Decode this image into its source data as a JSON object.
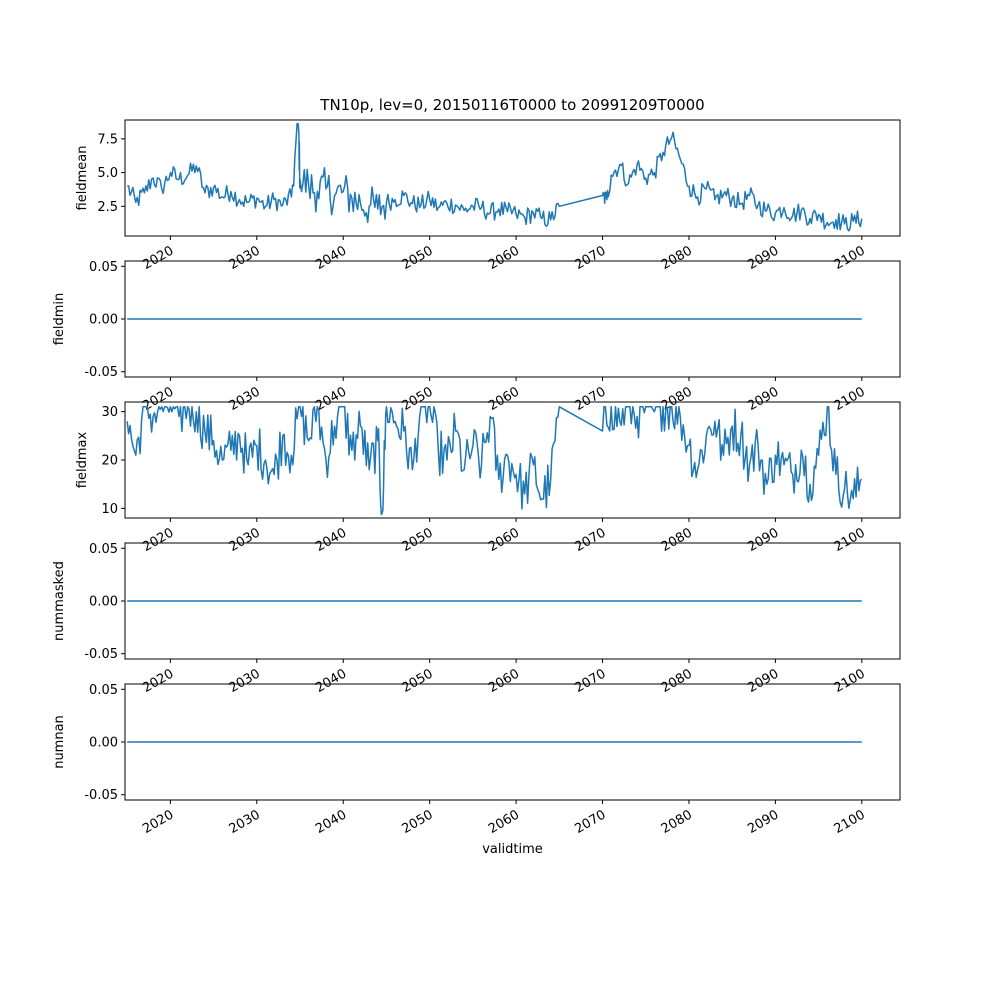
{
  "chart_data": {
    "title": "TN10p, lev=0, 20150116T0000 to 20991209T0000",
    "xlabel": "validtime",
    "x_ticks": [
      "2020",
      "2030",
      "2040",
      "2050",
      "2060",
      "2070",
      "2080",
      "2090",
      "2100"
    ],
    "x_range": [
      "2014-10",
      "2104-06"
    ],
    "line_color": "#1f77b4",
    "grid": false,
    "panels": [
      {
        "type": "line",
        "ylabel": "fieldmean",
        "ylim": [
          0.3,
          8.9
        ],
        "y_ticks": [
          "2.5",
          "5.0",
          "7.5"
        ],
        "x": [
          2015.0,
          2016.0,
          2017.0,
          2018.0,
          2019.0,
          2020.0,
          2021.0,
          2022.0,
          2023.0,
          2024.0,
          2025.0,
          2026.0,
          2027.0,
          2028.0,
          2029.0,
          2030.0,
          2031.0,
          2032.0,
          2033.0,
          2034.0,
          2034.8,
          2035.0,
          2036.0,
          2037.0,
          2038.0,
          2039.0,
          2040.0,
          2041.0,
          2042.0,
          2043.0,
          2044.0,
          2045.0,
          2046.0,
          2047.0,
          2048.0,
          2049.0,
          2050.0,
          2051.0,
          2052.0,
          2053.0,
          2054.0,
          2055.0,
          2056.0,
          2057.0,
          2058.0,
          2059.0,
          2060.0,
          2061.0,
          2062.0,
          2063.0,
          2064.0,
          2065.0,
          2070.0,
          2070.5,
          2071.0,
          2072.0,
          2073.0,
          2074.0,
          2075.0,
          2076.0,
          2077.0,
          2078.0,
          2079.0,
          2080.0,
          2081.0,
          2082.0,
          2083.0,
          2084.0,
          2085.0,
          2086.0,
          2087.0,
          2088.0,
          2089.0,
          2090.0,
          2091.0,
          2092.0,
          2093.0,
          2094.0,
          2095.0,
          2096.0,
          2097.0,
          2098.0,
          2099.0,
          2100.0
        ],
        "y": [
          4.0,
          2.8,
          3.5,
          4.6,
          3.8,
          5.0,
          4.5,
          4.8,
          5.5,
          3.5,
          3.9,
          3.2,
          3.6,
          3.0,
          2.8,
          3.1,
          2.5,
          3.0,
          2.6,
          3.2,
          8.6,
          4.5,
          4.0,
          3.6,
          3.8,
          3.3,
          3.6,
          3.1,
          2.7,
          2.5,
          2.3,
          2.8,
          3.0,
          3.3,
          2.7,
          2.6,
          3.0,
          2.4,
          2.7,
          2.6,
          2.2,
          2.5,
          2.4,
          2.0,
          2.3,
          2.1,
          1.9,
          1.7,
          2.0,
          1.6,
          1.5,
          2.5,
          3.3,
          3.0,
          4.8,
          5.6,
          4.2,
          5.6,
          4.6,
          5.0,
          6.5,
          7.6,
          6.0,
          4.0,
          3.2,
          3.8,
          3.0,
          3.4,
          3.1,
          2.7,
          3.3,
          2.6,
          2.2,
          2.0,
          2.4,
          1.8,
          2.2,
          1.6,
          1.9,
          1.3,
          1.5,
          1.2,
          1.4,
          1.6
        ]
      },
      {
        "type": "line",
        "ylabel": "fieldmin",
        "ylim": [
          -0.055,
          0.055
        ],
        "y_ticks": [
          "0.05",
          "0.00",
          "-0.05"
        ],
        "x": [
          2015.0,
          2100.0
        ],
        "y": [
          0.0,
          0.0
        ]
      },
      {
        "type": "line",
        "ylabel": "fieldmax",
        "ylim": [
          8.0,
          32.0
        ],
        "y_ticks": [
          "10",
          "20",
          "30"
        ],
        "x": [
          2015.0,
          2016.0,
          2017.0,
          2018.0,
          2019.0,
          2020.0,
          2021.0,
          2022.0,
          2023.0,
          2024.0,
          2025.0,
          2026.0,
          2027.0,
          2028.0,
          2029.0,
          2030.0,
          2031.0,
          2032.0,
          2033.0,
          2034.0,
          2035.0,
          2036.0,
          2037.0,
          2038.0,
          2039.0,
          2040.0,
          2041.0,
          2042.0,
          2043.0,
          2044.0,
          2044.5,
          2045.0,
          2046.0,
          2047.0,
          2048.0,
          2049.0,
          2050.0,
          2051.0,
          2052.0,
          2053.0,
          2054.0,
          2055.0,
          2056.0,
          2057.0,
          2058.0,
          2059.0,
          2060.0,
          2061.0,
          2062.0,
          2063.0,
          2064.0,
          2065.0,
          2070.0,
          2071.0,
          2072.0,
          2073.0,
          2074.0,
          2075.0,
          2076.0,
          2077.0,
          2078.0,
          2079.0,
          2080.0,
          2081.0,
          2082.0,
          2083.0,
          2084.0,
          2085.0,
          2086.0,
          2087.0,
          2088.0,
          2089.0,
          2090.0,
          2091.0,
          2092.0,
          2093.0,
          2094.0,
          2095.0,
          2096.0,
          2097.0,
          2098.0,
          2099.0,
          2100.0
        ],
        "y": [
          28.0,
          21.0,
          31.0,
          29.0,
          31.0,
          31.0,
          29.0,
          31.0,
          30.0,
          26.0,
          24.0,
          20.0,
          22.0,
          25.0,
          19.0,
          23.0,
          20.0,
          17.0,
          25.0,
          21.0,
          31.0,
          24.0,
          31.0,
          20.0,
          27.0,
          31.0,
          22.0,
          27.0,
          18.0,
          24.0,
          9.0,
          31.0,
          28.0,
          26.0,
          18.0,
          31.0,
          31.0,
          22.0,
          20.0,
          26.0,
          18.0,
          23.0,
          19.0,
          29.0,
          16.0,
          21.0,
          17.0,
          13.0,
          19.0,
          12.0,
          16.0,
          31.0,
          26.0,
          31.0,
          28.0,
          31.0,
          29.0,
          31.0,
          30.0,
          31.0,
          31.0,
          29.0,
          23.0,
          18.0,
          25.0,
          28.0,
          21.0,
          27.0,
          25.0,
          19.0,
          23.0,
          15.0,
          21.0,
          19.0,
          17.0,
          22.0,
          15.0,
          21.0,
          31.0,
          17.0,
          14.0,
          12.0,
          16.0
        ]
      },
      {
        "type": "line",
        "ylabel": "nummasked",
        "ylim": [
          -0.055,
          0.055
        ],
        "y_ticks": [
          "0.05",
          "0.00",
          "-0.05"
        ],
        "x": [
          2015.0,
          2100.0
        ],
        "y": [
          0.0,
          0.0
        ]
      },
      {
        "type": "line",
        "ylabel": "numnan",
        "ylim": [
          -0.055,
          0.055
        ],
        "y_ticks": [
          "0.05",
          "0.00",
          "-0.05"
        ],
        "x": [
          2015.0,
          2100.0
        ],
        "y": [
          0.0,
          0.0
        ]
      }
    ]
  }
}
